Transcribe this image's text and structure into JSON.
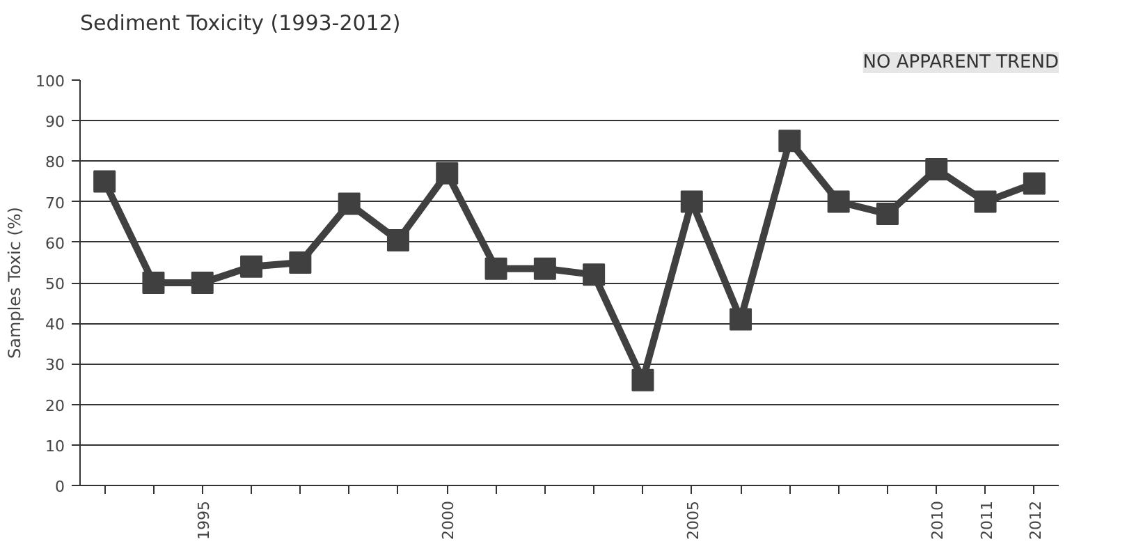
{
  "chart_data": {
    "type": "line",
    "title": "Sediment Toxicity (1993-2012)",
    "ylabel": "Samples Toxic (%)",
    "annotations": [
      "NO APPARENT TREND"
    ],
    "x": [
      1993,
      1994,
      1995,
      1996,
      1997,
      1998,
      1999,
      2000,
      2001,
      2002,
      2003,
      2004,
      2005,
      2006,
      2007,
      2008,
      2009,
      2010,
      2011,
      2012
    ],
    "series": [
      {
        "color": "#404040",
        "values": [
          75,
          50,
          50,
          54,
          55,
          69.5,
          60.5,
          77,
          53.5,
          53.5,
          52,
          26,
          70,
          41,
          85,
          70,
          67,
          78,
          70,
          74.5
        ]
      }
    ],
    "xlim": [
      1992.5,
      2012.5
    ],
    "ylim": [
      0,
      100
    ],
    "xticks": [
      {
        "value": 1993,
        "label": null
      },
      {
        "value": 1994,
        "label": null
      },
      1995,
      {
        "value": 1996,
        "label": null
      },
      {
        "value": 1997,
        "label": null
      },
      {
        "value": 1998,
        "label": null
      },
      {
        "value": 1999,
        "label": null
      },
      2000,
      {
        "value": 2001,
        "label": null
      },
      {
        "value": 2002,
        "label": null
      },
      {
        "value": 2003,
        "label": null
      },
      {
        "value": 2004,
        "label": null
      },
      2005,
      {
        "value": 2006,
        "label": null
      },
      {
        "value": 2007,
        "label": null
      },
      {
        "value": 2008,
        "label": null
      },
      {
        "value": 2009,
        "label": null
      },
      2010,
      2011,
      2012
    ],
    "yticks": [
      0,
      10,
      20,
      30,
      40,
      50,
      60,
      70,
      80,
      90,
      100
    ],
    "grid": "y",
    "marker": "square",
    "line_style": "solid"
  }
}
